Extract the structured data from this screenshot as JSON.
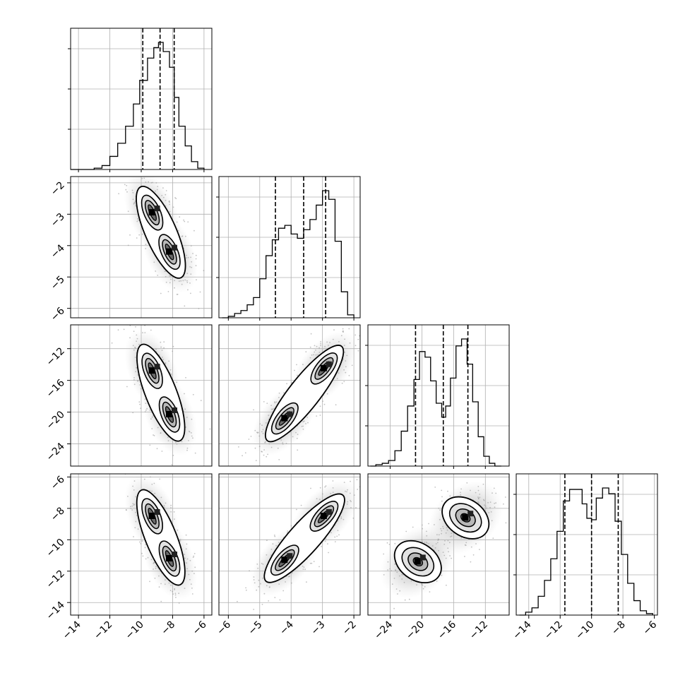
{
  "chart_data": {
    "type": "corner",
    "variables": 4,
    "grid": true,
    "quantile_lines": "dashed",
    "axis_ranges": [
      [
        -14.5,
        -5.5
      ],
      [
        -6.3,
        -1.8
      ],
      [
        -26.8,
        -9.0
      ],
      [
        -14.8,
        -5.8
      ]
    ],
    "tick_values": [
      [
        -14,
        -12,
        -10,
        -8,
        -6
      ],
      [
        -6,
        -5,
        -4,
        -3,
        -2
      ],
      [
        -24,
        -20,
        -16,
        -12
      ],
      [
        -14,
        -12,
        -10,
        -8,
        -6
      ]
    ],
    "tick_labels": [
      [
        "−14",
        "−12",
        "−10",
        "−8",
        "−6"
      ],
      [
        "−6",
        "−5",
        "−4",
        "−3",
        "−2"
      ],
      [
        "−24",
        "−20",
        "−16",
        "−12"
      ],
      [
        "−14",
        "−12",
        "−10",
        "−8",
        "−6"
      ]
    ],
    "histograms": [
      {
        "variable": 0,
        "quantiles": [
          -9.9,
          -8.8,
          -7.9
        ],
        "bin_edges": [
          -14.5,
          -14.0,
          -13.5,
          -13.0,
          -12.5,
          -12.0,
          -11.5,
          -11.0,
          -10.5,
          -10.1,
          -9.6,
          -9.2,
          -8.9,
          -8.6,
          -8.2,
          -7.9,
          -7.6,
          -7.2,
          -6.8,
          -6.4,
          -6.0
        ],
        "counts": [
          0.0,
          0.0,
          0.0,
          0.01,
          0.03,
          0.1,
          0.2,
          0.33,
          0.5,
          0.68,
          0.85,
          0.93,
          0.97,
          0.9,
          0.78,
          0.55,
          0.33,
          0.18,
          0.06,
          0.01
        ]
      },
      {
        "variable": 1,
        "quantiles": [
          -4.5,
          -3.6,
          -2.9
        ],
        "bin_edges": [
          -6.2,
          -6.0,
          -5.8,
          -5.6,
          -5.4,
          -5.2,
          -5.0,
          -4.8,
          -4.6,
          -4.4,
          -4.2,
          -4.0,
          -3.8,
          -3.6,
          -3.4,
          -3.2,
          -3.0,
          -2.8,
          -2.6,
          -2.4,
          -2.2,
          -2.0
        ],
        "counts": [
          0.0,
          0.01,
          0.03,
          0.05,
          0.09,
          0.14,
          0.27,
          0.43,
          0.54,
          0.62,
          0.64,
          0.58,
          0.55,
          0.61,
          0.68,
          0.78,
          0.88,
          0.82,
          0.53,
          0.18,
          0.02
        ]
      },
      {
        "variable": 2,
        "quantiles": [
          -20.8,
          -17.3,
          -14.2
        ],
        "bin_edges": [
          -26.5,
          -25.8,
          -25.0,
          -24.2,
          -23.4,
          -22.6,
          -21.8,
          -21.0,
          -20.3,
          -19.6,
          -18.9,
          -18.2,
          -17.5,
          -17.0,
          -16.4,
          -15.7,
          -15.0,
          -14.3,
          -13.6,
          -12.9,
          -12.2,
          -11.5,
          -10.8,
          -10.0
        ],
        "counts": [
          0.0,
          0.01,
          0.02,
          0.04,
          0.11,
          0.25,
          0.43,
          0.62,
          0.82,
          0.78,
          0.61,
          0.45,
          0.35,
          0.43,
          0.63,
          0.86,
          0.91,
          0.73,
          0.46,
          0.21,
          0.07,
          0.02,
          0.0
        ]
      },
      {
        "variable": 3,
        "quantiles": [
          -11.7,
          -10.0,
          -8.3
        ],
        "bin_edges": [
          -14.6,
          -14.2,
          -13.8,
          -13.4,
          -13.0,
          -12.6,
          -12.2,
          -11.8,
          -11.4,
          -11.0,
          -10.6,
          -10.3,
          -10.0,
          -9.7,
          -9.3,
          -8.9,
          -8.5,
          -8.1,
          -7.7,
          -7.3,
          -6.9,
          -6.5,
          -6.1
        ],
        "counts": [
          0.0,
          0.02,
          0.05,
          0.13,
          0.24,
          0.39,
          0.58,
          0.79,
          0.87,
          0.87,
          0.77,
          0.67,
          0.66,
          0.81,
          0.88,
          0.84,
          0.65,
          0.42,
          0.22,
          0.1,
          0.03,
          0.01
        ]
      }
    ],
    "scatter_panels": [
      {
        "x_variable": 0,
        "y_variable": 1,
        "density_peaks": [
          [
            -9.3,
            -2.95
          ],
          [
            -8.2,
            -4.2
          ]
        ]
      },
      {
        "x_variable": 0,
        "y_variable": 2,
        "density_peaks": [
          [
            -9.3,
            -14.8
          ],
          [
            -8.2,
            -20.3
          ]
        ]
      },
      {
        "x_variable": 1,
        "y_variable": 2,
        "density_peaks": [
          [
            -2.95,
            -14.5
          ],
          [
            -4.2,
            -20.8
          ]
        ]
      },
      {
        "x_variable": 0,
        "y_variable": 3,
        "density_peaks": [
          [
            -9.3,
            -8.5
          ],
          [
            -8.2,
            -11.2
          ]
        ]
      },
      {
        "x_variable": 1,
        "y_variable": 3,
        "density_peaks": [
          [
            -2.95,
            -8.5
          ],
          [
            -4.2,
            -11.3
          ]
        ]
      },
      {
        "x_variable": 2,
        "y_variable": 3,
        "density_peaks": [
          [
            -14.5,
            -8.6
          ],
          [
            -20.5,
            -11.4
          ]
        ]
      }
    ]
  }
}
